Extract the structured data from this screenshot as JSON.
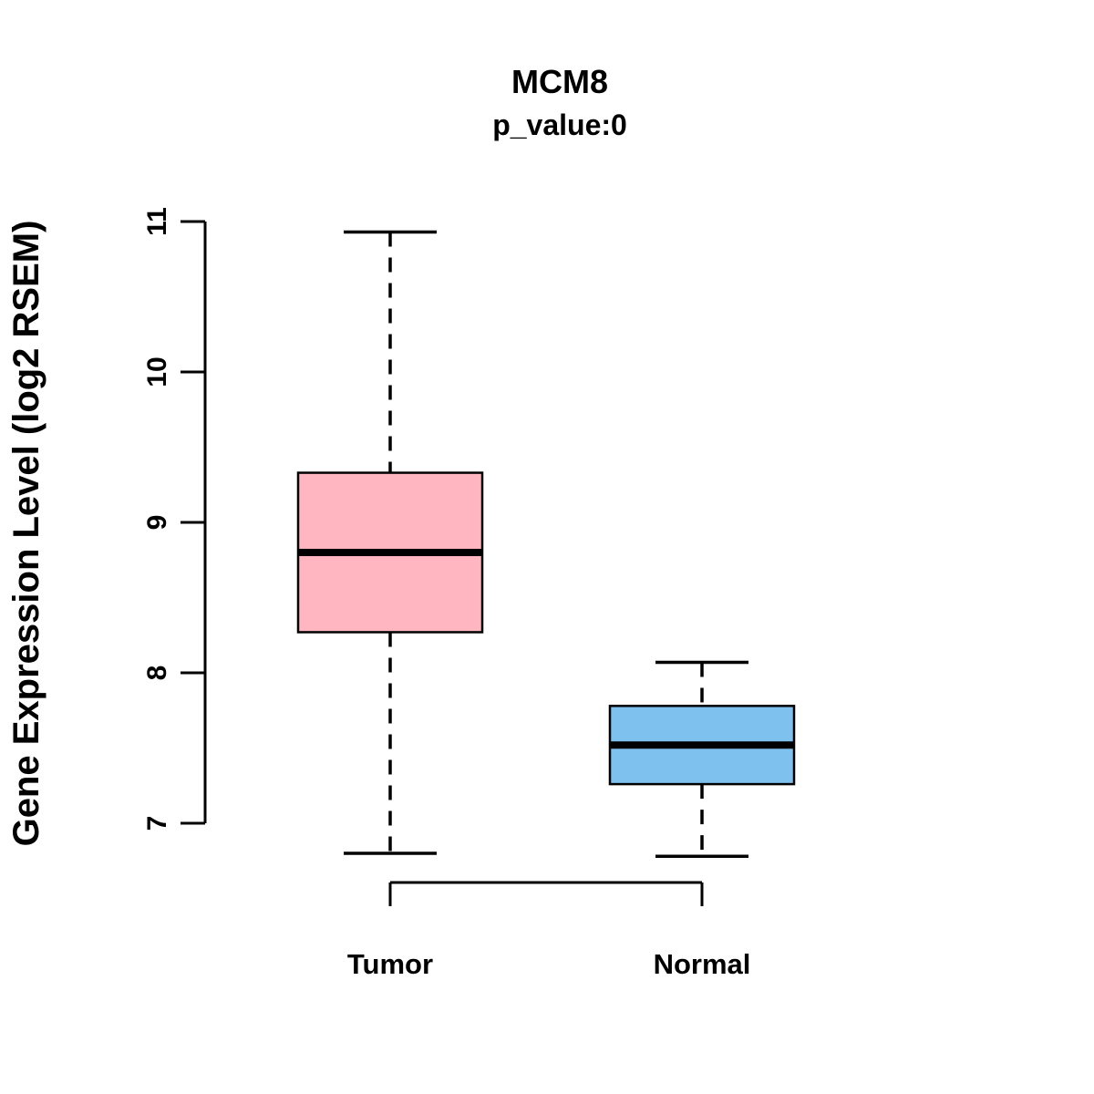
{
  "chart_data": {
    "type": "boxplot",
    "title": "MCM8",
    "subtitle": "p_value:0",
    "ylabel": "Gene Expression Level (log2 RSEM)",
    "xlabel": "",
    "yticks": [
      "7",
      "8",
      "9",
      "10",
      "11"
    ],
    "ytick_values": [
      7,
      8,
      9,
      10,
      11
    ],
    "ylim": [
      6.4,
      11.1
    ],
    "grid": false,
    "legend": "none",
    "groups": [
      {
        "label": "Tumor",
        "color": "#FFB6C1",
        "whisker_low": 6.8,
        "q1": 8.27,
        "median": 8.8,
        "q3": 9.33,
        "whisker_high": 10.93
      },
      {
        "label": "Normal",
        "color": "#7EC0EE",
        "whisker_low": 6.78,
        "q1": 7.26,
        "median": 7.52,
        "q3": 7.78,
        "whisker_high": 8.07
      }
    ],
    "axis_color": "#000000"
  }
}
